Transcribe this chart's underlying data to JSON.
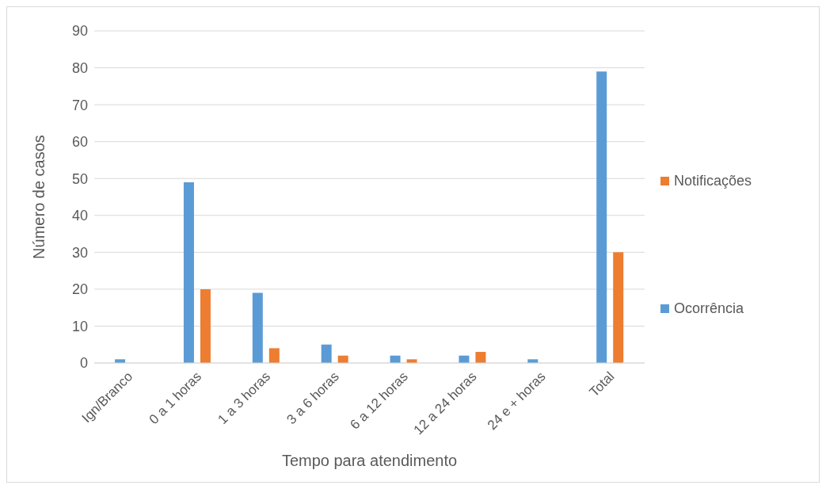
{
  "chart_data": {
    "type": "bar",
    "xlabel": "Tempo para atendimento",
    "ylabel": "Número de casos",
    "categories": [
      "Ign/Branco",
      "0 a 1 horas",
      "1 a 3 horas",
      "3 a 6 horas",
      "6 a 12 horas",
      "12 a 24 horas",
      "24 e + horas",
      "Total"
    ],
    "series": [
      {
        "name": "Ocorrência",
        "color": "#5b9bd5",
        "values": [
          1,
          49,
          19,
          5,
          2,
          2,
          1,
          79
        ]
      },
      {
        "name": "Notificações",
        "color": "#ed7d31",
        "values": [
          0,
          20,
          4,
          2,
          1,
          3,
          0,
          30
        ]
      }
    ],
    "ylim": [
      0,
      90
    ],
    "yticks": [
      0,
      10,
      20,
      30,
      40,
      50,
      60,
      70,
      80,
      90
    ],
    "grid": "y",
    "legend": "right"
  }
}
